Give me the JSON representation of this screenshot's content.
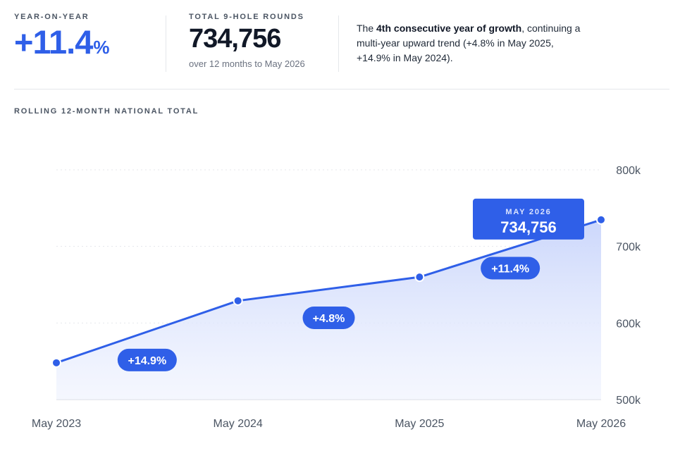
{
  "kpis": {
    "yoy": {
      "label": "YEAR-ON-YEAR",
      "value": "+11.4",
      "unit": "%"
    },
    "total": {
      "label": "TOTAL 9-HOLE ROUNDS",
      "value": "734,756",
      "sub": "over 12 months to May 2026"
    },
    "note": {
      "prefix": "The ",
      "highlight": "4th consecutive year of growth",
      "suffix": ", continuing a multi-year upward trend (+4.8% in May 2025, +14.9% in May 2024)."
    }
  },
  "chart_data": {
    "type": "area",
    "title": "ROLLING 12-MONTH NATIONAL TOTAL",
    "x": [
      "May 2023",
      "May 2024",
      "May 2025",
      "May 2026"
    ],
    "values": [
      548000,
      629000,
      660000,
      734756
    ],
    "ylim": [
      500000,
      800000
    ],
    "yticks": [
      500000,
      600000,
      700000,
      800000
    ],
    "ytick_labels": [
      "500k",
      "600k",
      "700k",
      "800k"
    ],
    "grid": true,
    "segment_labels": [
      "+14.9%",
      "+4.8%",
      "+11.4%"
    ],
    "callout": {
      "label": "MAY 2026",
      "value": "734,756"
    },
    "colors": {
      "line": "#2f5fe8",
      "area_top": "#cdd8fb",
      "badge": "#2f5fe8"
    }
  }
}
